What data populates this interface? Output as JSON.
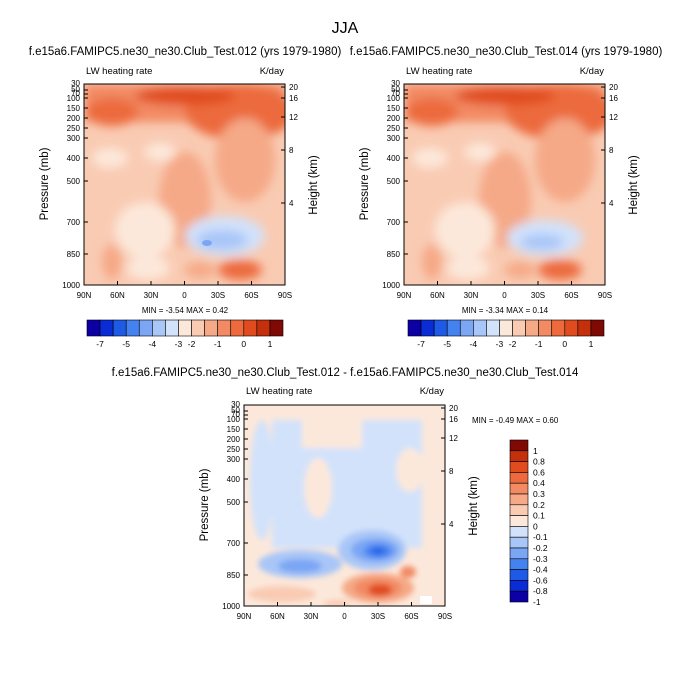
{
  "figure": {
    "title": "JJA",
    "variable": "LW heating rate",
    "units": "K/day"
  },
  "chart_data": [
    {
      "type": "heatmap",
      "title": "f.e15a6.FAMIPC5.ne30_ne30.Club_Test.012 (yrs 1979-1980)",
      "variable": "LW heating rate",
      "units": "K/day",
      "xlabel": "",
      "ylabel": "Pressure (mb)",
      "y2label": "Height (km)",
      "x_ticks": [
        "90N",
        "60N",
        "30N",
        "0",
        "30S",
        "60S",
        "90S"
      ],
      "y_ticks": [
        "30",
        "50",
        "70",
        "100",
        "150",
        "200",
        "250",
        "300",
        "400",
        "500",
        "700",
        "850",
        "1000"
      ],
      "y2_ticks": [
        "20",
        "16",
        "12",
        "8",
        "4"
      ],
      "stats": "MIN = -3.54  MAX =  0.42",
      "min": -3.54,
      "max": 0.42,
      "levels": [
        -7,
        -6,
        -5,
        -4.5,
        -4,
        -3.5,
        -3,
        -2.5,
        -2,
        -1.5,
        -1,
        -0.5,
        0,
        0.5,
        1
      ],
      "colorbar_labels": [
        "-7",
        "-5",
        "-4",
        "-3",
        "-2",
        "-1",
        "0",
        "1"
      ]
    },
    {
      "type": "heatmap",
      "title": "f.e15a6.FAMIPC5.ne30_ne30.Club_Test.014 (yrs 1979-1980)",
      "variable": "LW heating rate",
      "units": "K/day",
      "xlabel": "",
      "ylabel": "Pressure (mb)",
      "y2label": "Height (km)",
      "x_ticks": [
        "90N",
        "60N",
        "30N",
        "0",
        "30S",
        "60S",
        "90S"
      ],
      "y_ticks": [
        "30",
        "50",
        "70",
        "100",
        "150",
        "200",
        "250",
        "300",
        "400",
        "500",
        "700",
        "850",
        "1000"
      ],
      "y2_ticks": [
        "20",
        "16",
        "12",
        "8",
        "4"
      ],
      "stats": "MIN = -3.34  MAX =  0.14",
      "min": -3.34,
      "max": 0.14,
      "levels": [
        -7,
        -6,
        -5,
        -4.5,
        -4,
        -3.5,
        -3,
        -2.5,
        -2,
        -1.5,
        -1,
        -0.5,
        0,
        0.5,
        1
      ],
      "colorbar_labels": [
        "-7",
        "-5",
        "-4",
        "-3",
        "-2",
        "-1",
        "0",
        "1"
      ]
    },
    {
      "type": "heatmap",
      "title": "f.e15a6.FAMIPC5.ne30_ne30.Club_Test.012 - f.e15a6.FAMIPC5.ne30_ne30.Club_Test.014",
      "variable": "LW heating rate",
      "units": "K/day",
      "xlabel": "",
      "ylabel": "Pressure (mb)",
      "y2label": "Height (km)",
      "x_ticks": [
        "90N",
        "60N",
        "30N",
        "0",
        "30S",
        "60S",
        "90S"
      ],
      "y_ticks": [
        "30",
        "50",
        "70",
        "100",
        "150",
        "200",
        "250",
        "300",
        "400",
        "500",
        "700",
        "850",
        "1000"
      ],
      "y2_ticks": [
        "20",
        "16",
        "12",
        "8",
        "4"
      ],
      "stats": "MIN = -0.49  MAX =  0.60",
      "min": -0.49,
      "max": 0.6,
      "levels": [
        -1,
        -0.8,
        -0.6,
        -0.4,
        -0.3,
        -0.2,
        -0.1,
        0,
        0.1,
        0.2,
        0.3,
        0.4,
        0.6,
        0.8,
        1
      ],
      "colorbar_labels": [
        "1",
        "0.8",
        "0.6",
        "0.4",
        "0.3",
        "0.2",
        "0.1",
        "0",
        "-0.1",
        "-0.2",
        "-0.3",
        "-0.4",
        "-0.6",
        "-0.8",
        "-1"
      ]
    }
  ],
  "colors": {
    "scale": [
      "#0c00a5",
      "#0a2cd6",
      "#1e5ae6",
      "#4482f0",
      "#7aa6f4",
      "#a9c6f8",
      "#d2e2fb",
      "#fce8da",
      "#f9cbb3",
      "#f5a987",
      "#f28a63",
      "#ec6a3c",
      "#e04c1e",
      "#c42f0c",
      "#7f0a05"
    ]
  }
}
